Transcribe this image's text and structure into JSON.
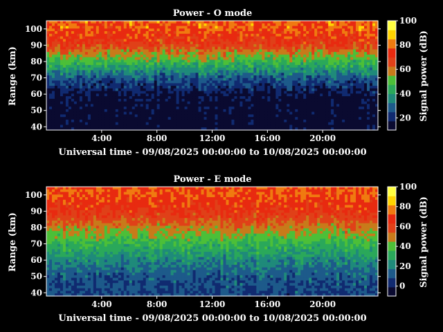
{
  "colors": {
    "background": "#000000",
    "foreground": "#ffffff",
    "colormap": [
      "#0a0a30",
      "#102a70",
      "#1d5a8a",
      "#1f8a7a",
      "#2aa85a",
      "#4cbf38",
      "#c87a1a",
      "#e04018",
      "#e82a10",
      "#f07a10",
      "#ffd400",
      "#ffff40"
    ]
  },
  "chart_data": [
    {
      "type": "heatmap",
      "title": "Power - O mode",
      "xlabel": "Universal time - 09/08/2025 00:00:00 to 10/08/2025 00:00:00",
      "ylabel": "Range (km)",
      "colorbar_label": "Signal power (dB)",
      "x_ticks": [
        "4:00",
        "8:00",
        "12:00",
        "16:00",
        "20:00"
      ],
      "y_ticks": [
        "40",
        "50",
        "60",
        "70",
        "80",
        "90",
        "100"
      ],
      "colorbar_ticks": [
        "20",
        "40",
        "60",
        "80",
        "100"
      ],
      "xlim_hours": [
        0,
        24
      ],
      "ylim_km": [
        38,
        105
      ],
      "clim_db": [
        10,
        100
      ],
      "profile": [
        {
          "range_km": 100,
          "power_db": 78
        },
        {
          "range_km": 90,
          "power_db": 68
        },
        {
          "range_km": 80,
          "power_db": 48
        },
        {
          "range_km": 70,
          "power_db": 28
        },
        {
          "range_km": 60,
          "power_db": 15
        },
        {
          "range_km": 50,
          "power_db": 12
        },
        {
          "range_km": 40,
          "power_db": 11
        }
      ]
    },
    {
      "type": "heatmap",
      "title": "Power - E mode",
      "xlabel": "Universal time - 09/08/2025 00:00:00 to 10/08/2025 00:00:00",
      "ylabel": "Range (km)",
      "colorbar_label": "Signal power (dB)",
      "x_ticks": [
        "4:00",
        "8:00",
        "12:00",
        "16:00",
        "20:00"
      ],
      "y_ticks": [
        "40",
        "50",
        "60",
        "70",
        "80",
        "90",
        "100"
      ],
      "colorbar_ticks": [
        "0",
        "20",
        "40",
        "60",
        "80",
        "100"
      ],
      "xlim_hours": [
        0,
        24
      ],
      "ylim_km": [
        38,
        105
      ],
      "clim_db": [
        -10,
        100
      ],
      "profile": [
        {
          "range_km": 100,
          "power_db": 72
        },
        {
          "range_km": 90,
          "power_db": 65
        },
        {
          "range_km": 80,
          "power_db": 50
        },
        {
          "range_km": 70,
          "power_db": 35
        },
        {
          "range_km": 60,
          "power_db": 22
        },
        {
          "range_km": 50,
          "power_db": 12
        },
        {
          "range_km": 40,
          "power_db": 8
        }
      ]
    }
  ]
}
